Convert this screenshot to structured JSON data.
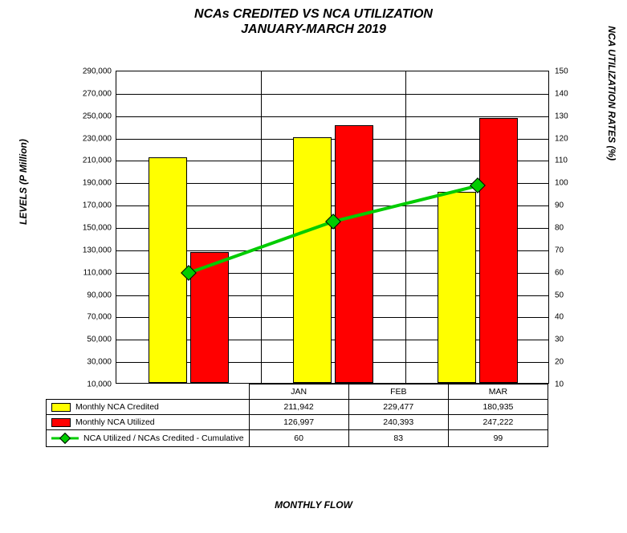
{
  "title_line1": "NCAs CREDITED VS NCA UTILIZATION",
  "title_line2": "JANUARY-MARCH 2019",
  "title_fontsize": 16,
  "ylabel_left": "LEVELS (P Million)",
  "ylabel_right": "NCA UTILIZATION RATES (%)",
  "xlabel": "MONTHLY FLOW",
  "label_fontsize": 12,
  "tick_fontsize": 10,
  "chart": {
    "type": "bar+line",
    "categories": [
      "JAN",
      "FEB",
      "MAR"
    ],
    "series_bar1": {
      "label": "Monthly NCA Credited",
      "color": "#ffff00",
      "values": [
        211942,
        229477,
        180935
      ]
    },
    "series_bar2": {
      "label": "Monthly NCA Utilized",
      "color": "#ff0000",
      "values": [
        126997,
        240393,
        247222
      ]
    },
    "series_line": {
      "label": "NCA Utilized / NCAs Credited - Cumulative",
      "color": "#00cc00",
      "marker_color": "#00cc00",
      "values": [
        60,
        83,
        99
      ]
    },
    "y_left": {
      "min": 10000,
      "max": 290000,
      "step": 20000
    },
    "y_right": {
      "min": 10,
      "max": 150,
      "step": 10
    },
    "bar_width_ratio": 0.27,
    "bar_gap_ratio": 0.02,
    "background_color": "#ffffff",
    "grid_color": "#000000",
    "line_width": 3,
    "marker_style": "diamond",
    "marker_size": 14,
    "legend_position": "table-below"
  },
  "table": {
    "col_widths_pct": [
      30,
      23.33,
      23.33,
      23.33
    ],
    "rows": [
      {
        "legend": "bar1",
        "label": "Monthly NCA Credited",
        "cells": [
          "211,942",
          "229,477",
          "180,935"
        ]
      },
      {
        "legend": "bar2",
        "label": "Monthly NCA Utilized",
        "cells": [
          "126,997",
          "240,393",
          "247,222"
        ]
      },
      {
        "legend": "line",
        "label": "NCA Utilized / NCAs Credited - Cumulative",
        "cells": [
          "60",
          "83",
          "99"
        ]
      }
    ],
    "header_cells": [
      "JAN",
      "FEB",
      "MAR"
    ]
  }
}
